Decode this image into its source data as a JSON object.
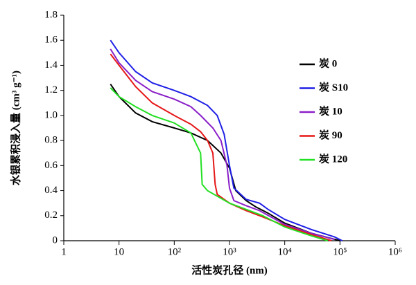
{
  "chart_data": {
    "type": "line",
    "xlabel": "活性炭孔径 (nm)",
    "ylabel": "水银累积浸入量 (cm³ g⁻¹)",
    "xscale": "log",
    "xlim": [
      1,
      1000000
    ],
    "xticks": [
      1,
      10,
      {
        "value": 100,
        "label": "10²"
      },
      {
        "value": 1000,
        "label": "10³"
      },
      {
        "value": 10000,
        "label": "10⁴"
      },
      {
        "value": 100000,
        "label": "10⁵"
      },
      {
        "value": 1000000,
        "label": "10⁶"
      }
    ],
    "ylim": [
      0,
      1.8
    ],
    "yticks": [
      0,
      0.2,
      0.4,
      0.6,
      0.8,
      {
        "value": 1,
        "label": "1.0"
      },
      1.2,
      1.4,
      1.6,
      1.8
    ],
    "legend": "right",
    "series": [
      {
        "name": "炭 0",
        "color": "#000000",
        "x": [
          7,
          10,
          20,
          40,
          100,
          200,
          400,
          700,
          1000,
          1300,
          2000,
          3000,
          5000,
          10000,
          30000,
          100000
        ],
        "values": [
          1.25,
          1.15,
          1.02,
          0.95,
          0.9,
          0.86,
          0.8,
          0.7,
          0.58,
          0.4,
          0.32,
          0.27,
          0.22,
          0.14,
          0.06,
          0
        ]
      },
      {
        "name": "炭 S10",
        "color": "#1f1fe6",
        "x": [
          7,
          10,
          20,
          40,
          100,
          200,
          400,
          600,
          800,
          1000,
          1200,
          2000,
          3500,
          5000,
          10000,
          30000,
          80000,
          110000
        ],
        "values": [
          1.6,
          1.5,
          1.35,
          1.26,
          1.2,
          1.15,
          1.08,
          1.0,
          0.85,
          0.6,
          0.42,
          0.33,
          0.3,
          0.25,
          0.17,
          0.09,
          0.03,
          0
        ]
      },
      {
        "name": "炭 10",
        "color": "#8a1fc8",
        "x": [
          7,
          10,
          20,
          40,
          100,
          200,
          300,
          500,
          700,
          900,
          1000,
          1200,
          2000,
          3500,
          10000,
          30000,
          80000
        ],
        "values": [
          1.53,
          1.42,
          1.28,
          1.19,
          1.13,
          1.07,
          1.0,
          0.9,
          0.8,
          0.6,
          0.42,
          0.32,
          0.28,
          0.24,
          0.13,
          0.06,
          0.01
        ]
      },
      {
        "name": "炭 90",
        "color": "#e61717",
        "x": [
          7,
          10,
          20,
          40,
          100,
          200,
          300,
          400,
          500,
          550,
          600,
          1000,
          2000,
          4000,
          10000,
          30000,
          70000
        ],
        "values": [
          1.49,
          1.4,
          1.23,
          1.1,
          1.0,
          0.93,
          0.87,
          0.8,
          0.7,
          0.45,
          0.37,
          0.3,
          0.24,
          0.19,
          0.12,
          0.05,
          0
        ]
      },
      {
        "name": "炭 120",
        "color": "#22e022",
        "x": [
          7,
          10,
          20,
          40,
          100,
          200,
          300,
          320,
          400,
          1000,
          2000,
          4000,
          10000,
          30000,
          60000
        ],
        "values": [
          1.22,
          1.15,
          1.07,
          1.0,
          0.94,
          0.86,
          0.7,
          0.45,
          0.4,
          0.3,
          0.25,
          0.2,
          0.11,
          0.04,
          0
        ]
      }
    ]
  }
}
